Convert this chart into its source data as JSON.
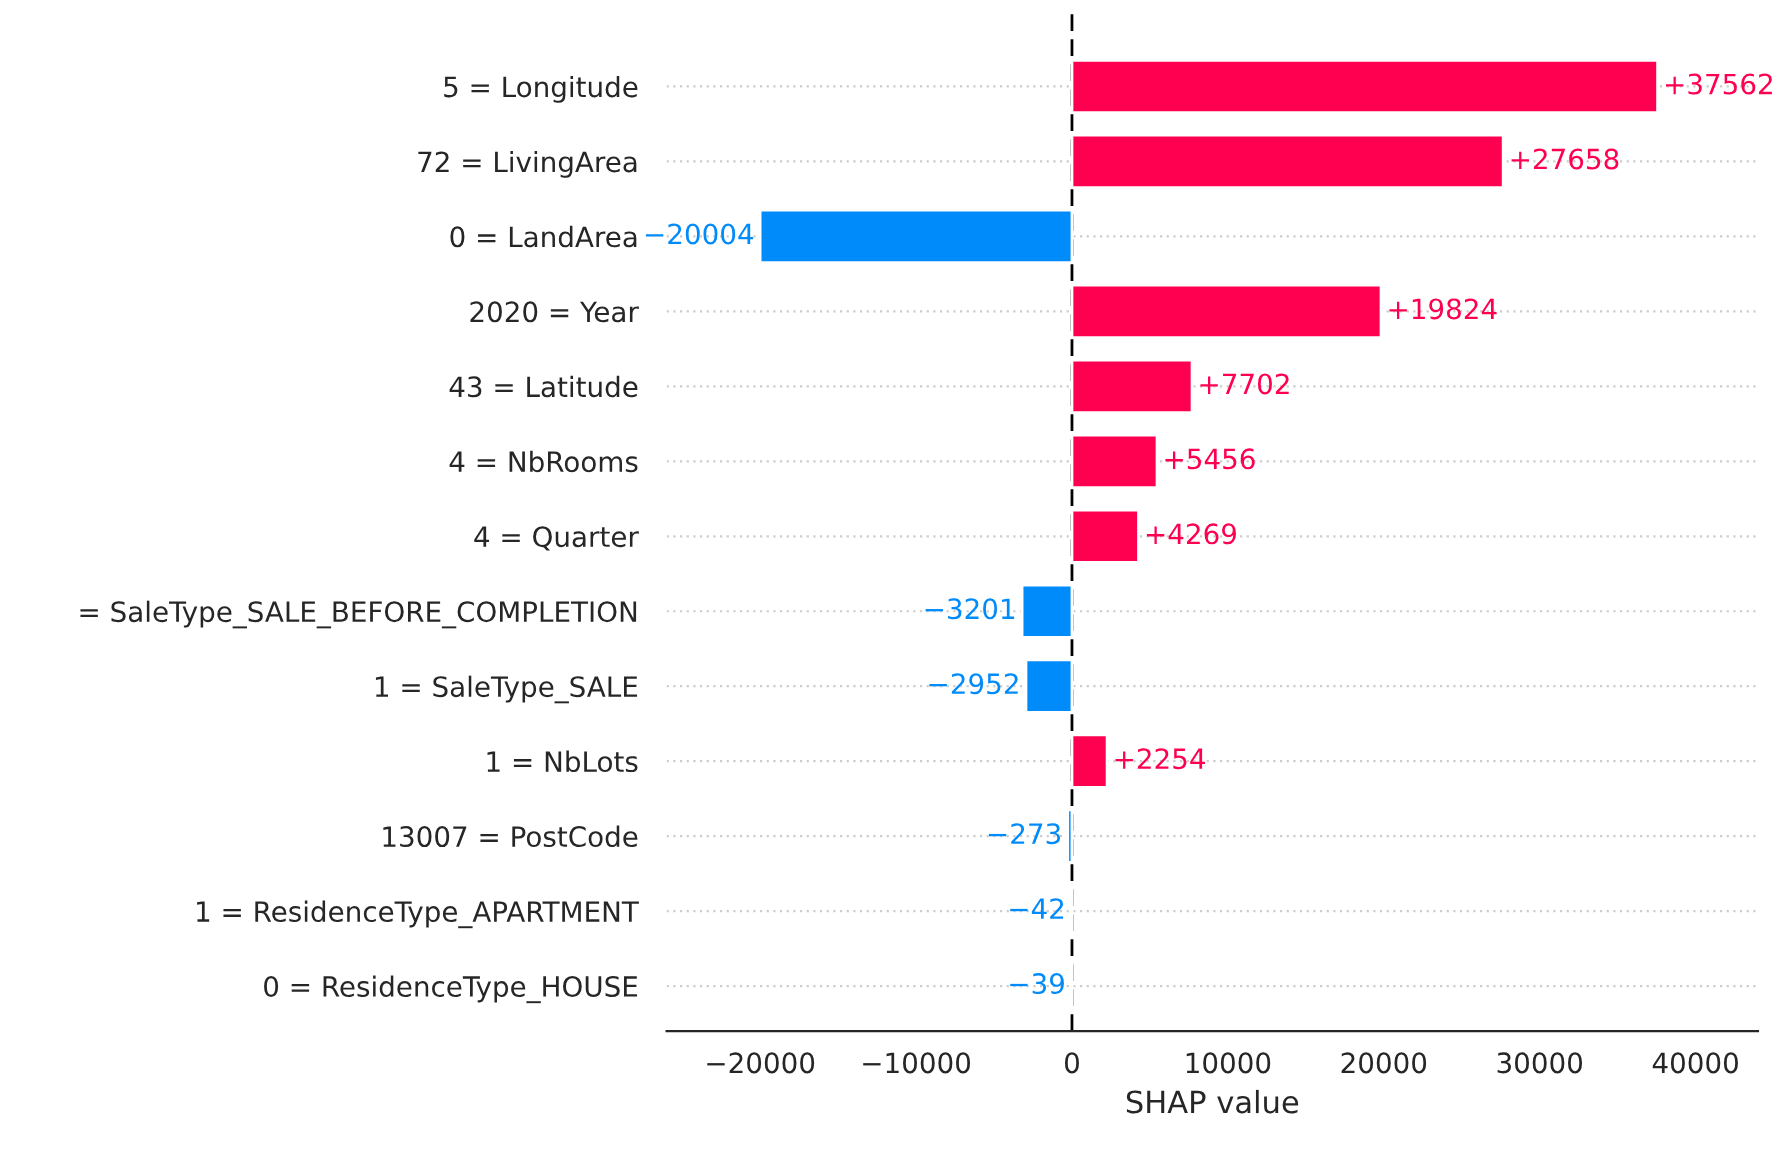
{
  "chart_data": {
    "type": "bar",
    "orientation": "horizontal",
    "xlabel": "SHAP value",
    "categories": [
      "5 = Longitude",
      "72 = LivingArea",
      "0 = LandArea",
      "2020 = Year",
      "43 = Latitude",
      "4 = NbRooms",
      "4 = Quarter",
      "= SaleType_SALE_BEFORE_COMPLETION",
      "1 = SaleType_SALE",
      "1 = NbLots",
      "13007 = PostCode",
      "1 = ResidenceType_APARTMENT",
      "0 = ResidenceType_HOUSE"
    ],
    "values": [
      37562,
      27658,
      -20004,
      19824,
      7702,
      5456,
      4269,
      -3201,
      -2952,
      2254,
      -273,
      -42,
      -39
    ],
    "colors": [
      "#ff0051",
      "#ff0051",
      "#008bfb",
      "#ff0051",
      "#ff0051",
      "#ff0051",
      "#ff0051",
      "#008bfb",
      "#008bfb",
      "#ff0051",
      "#008bfb",
      "#008bfb",
      "#008bfb"
    ],
    "value_labels": [
      "+37562",
      "+27658",
      "−20004",
      "+19824",
      "+7702",
      "+5456",
      "+4269",
      "−3201",
      "−2952",
      "+2254",
      "−273",
      "−42",
      "−39"
    ],
    "xlim": [
      -26000,
      44000
    ],
    "xticks": [
      {
        "value": -20000,
        "label": "−20000"
      },
      {
        "value": -10000,
        "label": "−10000"
      },
      0,
      10000,
      20000,
      30000,
      40000
    ],
    "ref_lines": [
      {
        "axis": "x",
        "value": 0,
        "color": "#000000",
        "line_style": "dashed"
      }
    ],
    "grid": "y"
  }
}
